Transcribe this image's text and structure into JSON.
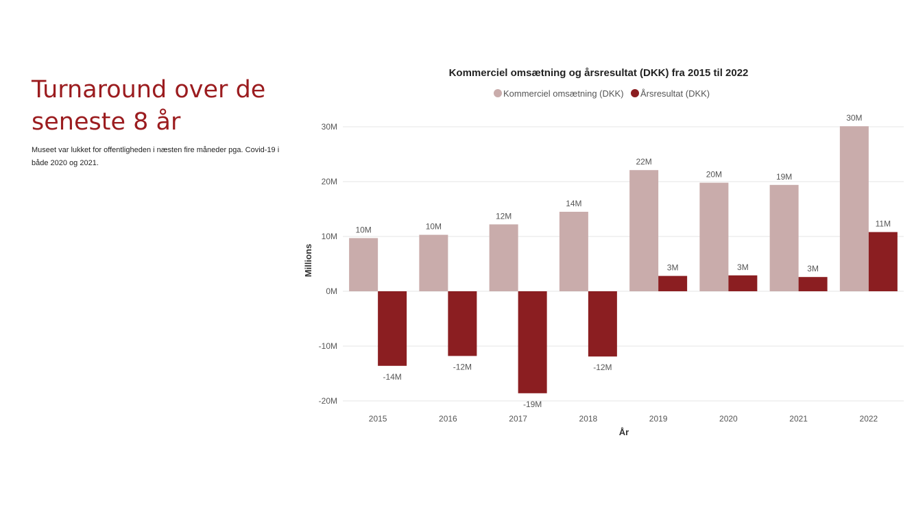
{
  "slide": {
    "heading": "Turnaround over de seneste 8 år",
    "description": "Museet var lukket for offentligheden i næsten fire måneder pga. Covid-19 i både 2020 og 2021."
  },
  "colors": {
    "heading": "#9b1c1f",
    "omsaetning": "#c9acab",
    "aarsresultat": "#8b1e21",
    "grid": "#e6e6e6",
    "axis_text": "#555555"
  },
  "chart_data": {
    "type": "bar",
    "title": "Kommerciel omsætning og årsresultat (DKK) fra 2015 til 2022",
    "xlabel": "År",
    "ylabel": "Millions",
    "categories": [
      "2015",
      "2016",
      "2017",
      "2018",
      "2019",
      "2020",
      "2021",
      "2022"
    ],
    "series": [
      {
        "name": "Kommerciel omsætning (DKK)",
        "color": "#c9acab",
        "values": [
          9.7,
          10.3,
          12.2,
          14.5,
          22.1,
          19.8,
          19.4,
          30.1
        ],
        "labels": [
          "10M",
          "10M",
          "12M",
          "14M",
          "22M",
          "20M",
          "19M",
          "30M"
        ]
      },
      {
        "name": "Årsresultat (DKK)",
        "color": "#8b1e21",
        "values": [
          -13.6,
          -11.8,
          -18.6,
          -11.9,
          2.8,
          2.9,
          2.6,
          10.8
        ],
        "labels": [
          "-14M",
          "-12M",
          "-19M",
          "-12M",
          "3M",
          "3M",
          "3M",
          "11M"
        ]
      }
    ],
    "yticks": [
      "30M",
      "20M",
      "10M",
      "0M",
      "-10M",
      "-20M"
    ],
    "ytick_values": [
      30,
      20,
      10,
      0,
      -10,
      -20
    ],
    "ylim": [
      -20,
      30
    ],
    "grid": true,
    "legend_position": "top-center"
  }
}
